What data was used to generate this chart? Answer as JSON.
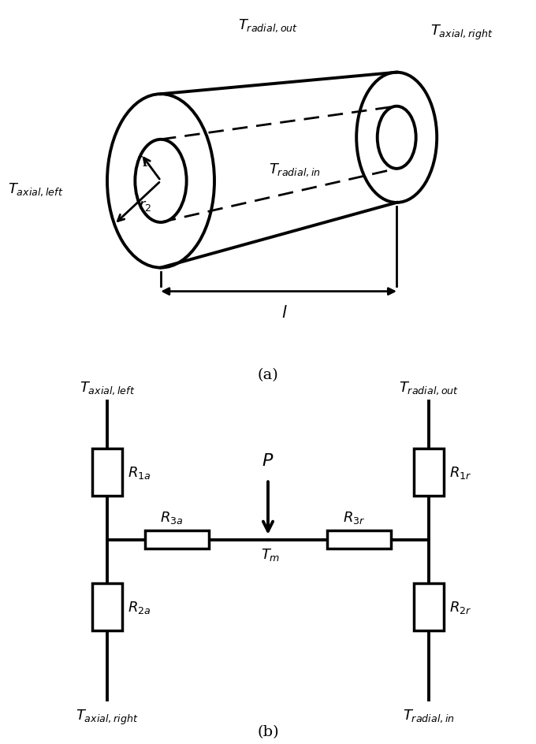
{
  "fig_width": 6.8,
  "fig_height": 9.45,
  "dpi": 100,
  "background": "#ffffff",
  "label_a": "(a)",
  "label_b": "(b)",
  "lw_main": 2.8,
  "lw_thin": 2.0,
  "fontsize_label": 14,
  "fontsize_sub": 13,
  "fontsize_resistor": 13
}
